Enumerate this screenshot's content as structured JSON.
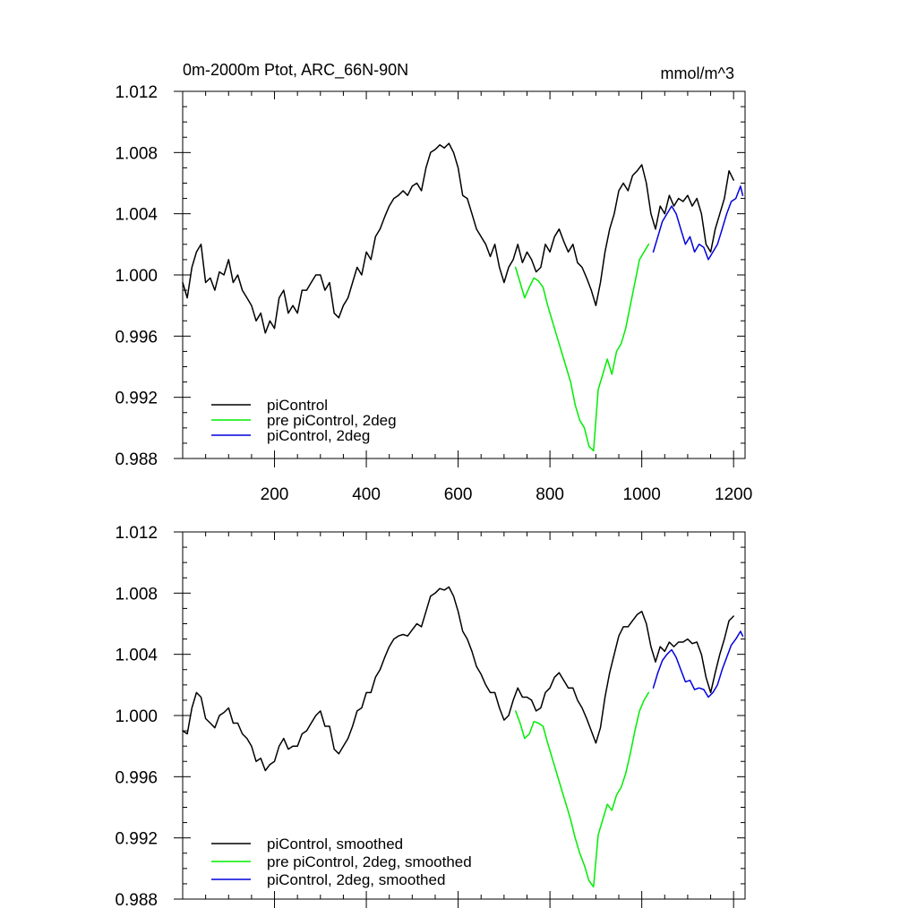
{
  "chart_data": [
    {
      "type": "line",
      "title": "0m-2000m Ptot, ARC_66N-90N",
      "units": "mmol/m^3",
      "xlim": [
        0,
        1225
      ],
      "ylim": [
        0.988,
        1.012
      ],
      "xticks": [
        200,
        400,
        600,
        800,
        1000,
        1200
      ],
      "xtick_labels": [
        "200",
        "400",
        "600",
        "800",
        "1000",
        "1200"
      ],
      "yticks": [
        0.988,
        0.992,
        0.996,
        1.0,
        1.004,
        1.008,
        1.012
      ],
      "ytick_labels": [
        "0.988",
        "0.992",
        "0.996",
        "1.000",
        "1.004",
        "1.008",
        "1.012"
      ],
      "legend_position": "bottom-left",
      "series": [
        {
          "name": "piControl",
          "color": "#000000",
          "x": [
            0,
            10,
            20,
            30,
            40,
            50,
            60,
            70,
            80,
            90,
            100,
            110,
            120,
            130,
            140,
            150,
            160,
            170,
            180,
            190,
            200,
            210,
            220,
            230,
            240,
            250,
            260,
            270,
            280,
            290,
            300,
            310,
            320,
            330,
            340,
            350,
            360,
            370,
            380,
            390,
            400,
            410,
            420,
            430,
            440,
            450,
            460,
            470,
            480,
            490,
            500,
            510,
            520,
            530,
            540,
            550,
            560,
            570,
            580,
            590,
            600,
            610,
            620,
            630,
            640,
            650,
            660,
            670,
            680,
            690,
            700,
            710,
            720,
            730,
            740,
            750,
            760,
            770,
            780,
            790,
            800,
            810,
            820,
            830,
            840,
            850,
            860,
            870,
            880,
            890,
            900,
            910,
            920,
            930,
            940,
            950,
            960,
            970,
            980,
            990,
            1000,
            1010,
            1020,
            1030,
            1040,
            1050,
            1060,
            1070,
            1080,
            1090,
            1100,
            1110,
            1120,
            1130,
            1140,
            1150,
            1160,
            1170,
            1180,
            1190,
            1200
          ],
          "values": [
            0.9995,
            0.9985,
            1.0005,
            1.0015,
            1.002,
            0.9995,
            0.9998,
            0.999,
            1.0002,
            1.0,
            1.001,
            0.9995,
            1.0,
            0.999,
            0.9985,
            0.998,
            0.997,
            0.9975,
            0.9962,
            0.997,
            0.9965,
            0.9985,
            0.999,
            0.9975,
            0.998,
            0.9975,
            0.999,
            0.999,
            0.9995,
            1.0,
            1.0,
            0.999,
            0.9995,
            0.9975,
            0.9972,
            0.998,
            0.9985,
            0.9995,
            1.0005,
            1.0,
            1.0015,
            1.001,
            1.0025,
            1.003,
            1.0038,
            1.0045,
            1.005,
            1.0052,
            1.0055,
            1.0052,
            1.0058,
            1.006,
            1.0055,
            1.007,
            1.008,
            1.0082,
            1.0085,
            1.0083,
            1.0086,
            1.008,
            1.007,
            1.0052,
            1.005,
            1.004,
            1.003,
            1.0025,
            1.002,
            1.0012,
            1.002,
            1.0005,
            0.9995,
            1.0005,
            1.001,
            1.002,
            1.0008,
            1.0015,
            1.001,
            1.0002,
            1.0005,
            1.002,
            1.0015,
            1.0025,
            1.003,
            1.0022,
            1.0015,
            1.002,
            1.0008,
            1.0005,
            0.9998,
            0.999,
            0.998,
            0.9995,
            1.0015,
            1.003,
            1.004,
            1.0055,
            1.006,
            1.0055,
            1.0065,
            1.0068,
            1.0072,
            1.006,
            1.004,
            1.003,
            1.0045,
            1.004,
            1.0052,
            1.0045,
            1.005,
            1.0048,
            1.0052,
            1.0045,
            1.005,
            1.004,
            1.002,
            1.0015,
            1.003,
            1.004,
            1.005,
            1.0068,
            1.0062
          ]
        },
        {
          "name": "pre piControl, 2deg",
          "color": "#00ee00",
          "x": [
            725,
            735,
            745,
            755,
            765,
            775,
            785,
            795,
            805,
            815,
            825,
            835,
            845,
            855,
            865,
            875,
            885,
            895,
            905,
            915,
            925,
            935,
            945,
            955,
            965,
            975,
            985,
            995,
            1005,
            1015
          ],
          "values": [
            1.0005,
            0.9995,
            0.9985,
            0.9992,
            0.9998,
            0.9996,
            0.9992,
            0.998,
            0.997,
            0.996,
            0.995,
            0.994,
            0.993,
            0.9915,
            0.9905,
            0.99,
            0.9888,
            0.9885,
            0.9925,
            0.9935,
            0.9945,
            0.9935,
            0.995,
            0.9955,
            0.9965,
            0.998,
            0.9995,
            1.001,
            1.0015,
            1.002
          ]
        },
        {
          "name": "piControl, 2deg",
          "color": "#0000dd",
          "x": [
            1025,
            1035,
            1045,
            1055,
            1065,
            1075,
            1085,
            1095,
            1105,
            1115,
            1125,
            1135,
            1145,
            1155,
            1165,
            1175,
            1185,
            1195,
            1205,
            1215,
            1220
          ],
          "values": [
            1.0015,
            1.0025,
            1.0035,
            1.004,
            1.0045,
            1.004,
            1.003,
            1.002,
            1.0025,
            1.0015,
            1.002,
            1.0018,
            1.001,
            1.0015,
            1.002,
            1.003,
            1.004,
            1.0048,
            1.005,
            1.0058,
            1.0052
          ]
        }
      ]
    },
    {
      "type": "line",
      "title": "",
      "xlim": [
        0,
        1225
      ],
      "ylim": [
        0.988,
        1.012
      ],
      "xticks": [
        200,
        400,
        600,
        800,
        1000,
        1200
      ],
      "xtick_labels": [],
      "yticks": [
        0.988,
        0.992,
        0.996,
        1.0,
        1.004,
        1.008,
        1.012
      ],
      "ytick_labels": [
        "0.988",
        "0.992",
        "0.996",
        "1.000",
        "1.004",
        "1.008",
        "1.012"
      ],
      "legend_position": "bottom-left",
      "series": [
        {
          "name": "piControl, smoothed",
          "color": "#000000",
          "x": [
            0,
            10,
            20,
            30,
            40,
            50,
            60,
            70,
            80,
            90,
            100,
            110,
            120,
            130,
            140,
            150,
            160,
            170,
            180,
            190,
            200,
            210,
            220,
            230,
            240,
            250,
            260,
            270,
            280,
            290,
            300,
            310,
            320,
            330,
            340,
            350,
            360,
            370,
            380,
            390,
            400,
            410,
            420,
            430,
            440,
            450,
            460,
            470,
            480,
            490,
            500,
            510,
            520,
            530,
            540,
            550,
            560,
            570,
            580,
            590,
            600,
            610,
            620,
            630,
            640,
            650,
            660,
            670,
            680,
            690,
            700,
            710,
            720,
            730,
            740,
            750,
            760,
            770,
            780,
            790,
            800,
            810,
            820,
            830,
            840,
            850,
            860,
            870,
            880,
            890,
            900,
            910,
            920,
            930,
            940,
            950,
            960,
            970,
            980,
            990,
            1000,
            1010,
            1020,
            1030,
            1040,
            1050,
            1060,
            1070,
            1080,
            1090,
            1100,
            1110,
            1120,
            1130,
            1140,
            1150,
            1160,
            1170,
            1180,
            1190,
            1200
          ],
          "values": [
            0.999,
            0.9988,
            1.0005,
            1.0015,
            1.0012,
            0.9998,
            0.9995,
            0.9992,
            1.0,
            1.0002,
            1.0005,
            0.9995,
            0.9995,
            0.9988,
            0.9985,
            0.998,
            0.997,
            0.9972,
            0.9964,
            0.9968,
            0.997,
            0.998,
            0.9985,
            0.9978,
            0.998,
            0.998,
            0.9988,
            0.999,
            0.9995,
            1.0,
            1.0003,
            0.9993,
            0.9993,
            0.9978,
            0.9975,
            0.998,
            0.9985,
            0.9993,
            1.0003,
            1.0005,
            1.0015,
            1.0015,
            1.0025,
            1.003,
            1.0038,
            1.0045,
            1.005,
            1.0052,
            1.0053,
            1.0052,
            1.0056,
            1.006,
            1.0058,
            1.0068,
            1.0078,
            1.008,
            1.0083,
            1.0082,
            1.0084,
            1.0078,
            1.0068,
            1.0055,
            1.005,
            1.0042,
            1.0032,
            1.0027,
            1.002,
            1.0015,
            1.0015,
            1.0005,
            0.9997,
            1.0,
            1.001,
            1.0018,
            1.0012,
            1.0012,
            1.001,
            1.0003,
            1.0005,
            1.0015,
            1.0018,
            1.0025,
            1.0028,
            1.0023,
            1.0018,
            1.0018,
            1.001,
            1.0005,
            0.9998,
            0.999,
            0.9982,
            0.9992,
            1.0012,
            1.0028,
            1.004,
            1.0052,
            1.0058,
            1.0058,
            1.0062,
            1.0066,
            1.0068,
            1.006,
            1.0045,
            1.0035,
            1.0045,
            1.0042,
            1.0048,
            1.0045,
            1.0048,
            1.0048,
            1.005,
            1.0047,
            1.0048,
            1.004,
            1.0025,
            1.0015,
            1.0028,
            1.004,
            1.005,
            1.0062,
            1.0065
          ]
        },
        {
          "name": "pre piControl, 2deg, smoothed",
          "color": "#00ee00",
          "x": [
            725,
            735,
            745,
            755,
            765,
            775,
            785,
            795,
            805,
            815,
            825,
            835,
            845,
            855,
            865,
            875,
            885,
            895,
            905,
            915,
            925,
            935,
            945,
            955,
            965,
            975,
            985,
            995,
            1005,
            1015
          ],
          "values": [
            1.0003,
            0.9995,
            0.9985,
            0.9988,
            0.9996,
            0.9995,
            0.9993,
            0.9982,
            0.9972,
            0.9962,
            0.9952,
            0.9942,
            0.9932,
            0.992,
            0.991,
            0.9902,
            0.9892,
            0.9888,
            0.9922,
            0.9932,
            0.9942,
            0.9938,
            0.9948,
            0.9953,
            0.9962,
            0.9975,
            0.999,
            1.0003,
            1.001,
            1.0015
          ]
        },
        {
          "name": "piControl, 2deg, smoothed",
          "color": "#0000dd",
          "x": [
            1025,
            1035,
            1045,
            1055,
            1065,
            1075,
            1085,
            1095,
            1105,
            1115,
            1125,
            1135,
            1145,
            1155,
            1165,
            1175,
            1185,
            1195,
            1205,
            1215,
            1220
          ],
          "values": [
            1.0018,
            1.0028,
            1.0036,
            1.004,
            1.0043,
            1.0038,
            1.003,
            1.0022,
            1.0023,
            1.0017,
            1.0018,
            1.0017,
            1.0012,
            1.0015,
            1.002,
            1.003,
            1.0038,
            1.0046,
            1.005,
            1.0055,
            1.0052
          ]
        }
      ]
    }
  ]
}
